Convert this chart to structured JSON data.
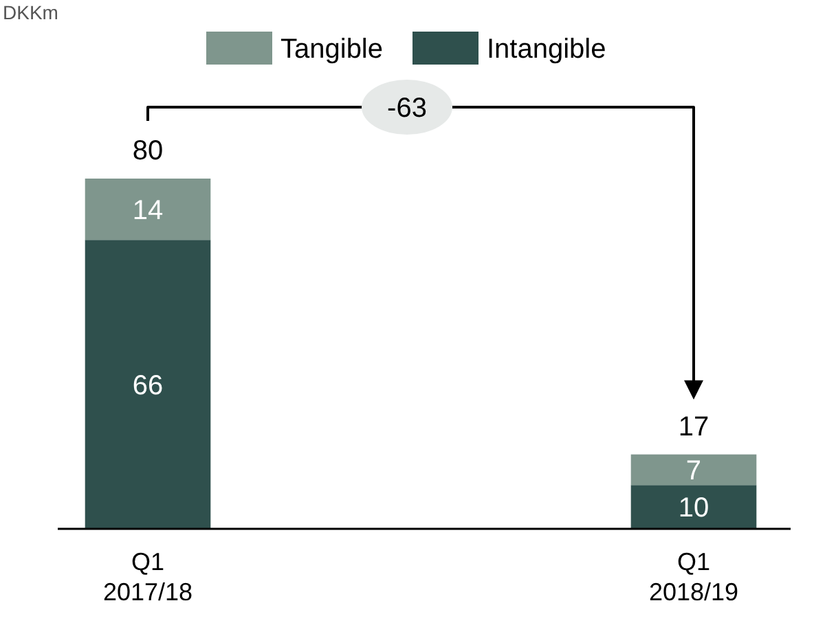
{
  "chart_data": {
    "type": "bar",
    "stacked": true,
    "categories": [
      "Q1\n2017/18",
      "Q1\n2018/19"
    ],
    "series": [
      {
        "name": "Intangible",
        "color": "#2f504d",
        "values": [
          66,
          10
        ]
      },
      {
        "name": "Tangible",
        "color": "#7f968d",
        "values": [
          14,
          7
        ]
      }
    ],
    "data_labels": true,
    "totals": [
      "80",
      "17"
    ],
    "annotations": [
      "-63",
      "DKKm"
    ],
    "legend": "top",
    "ylim": [
      0,
      80
    ],
    "tick_labels": "x"
  }
}
